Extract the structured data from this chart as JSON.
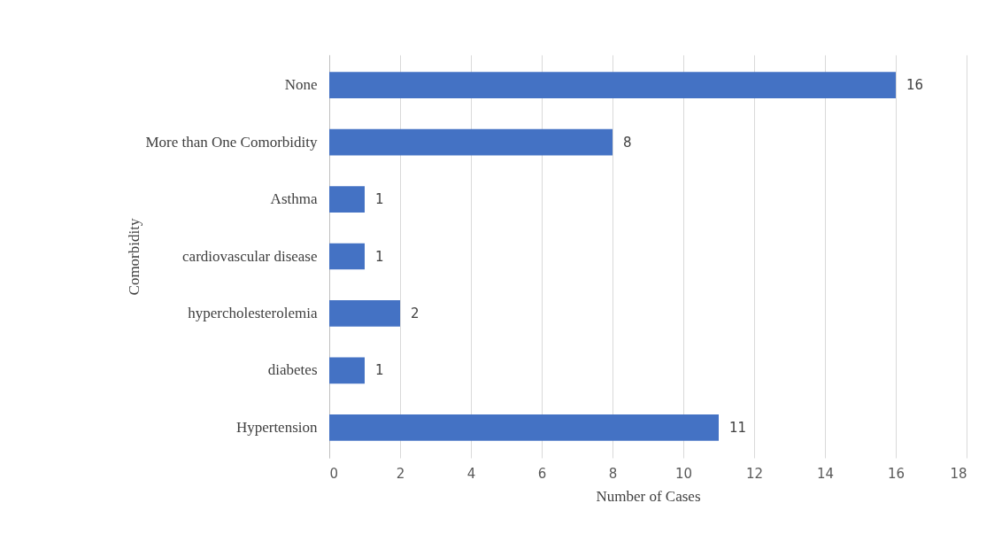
{
  "chart_data": {
    "type": "bar",
    "orientation": "horizontal",
    "xlabel": "Number of Cases",
    "ylabel": "Comorbidity",
    "categories": [
      "None",
      "More than One Comorbidity",
      "Asthma",
      "cardiovascular disease",
      "hypercholesterolemia",
      "diabetes",
      "Hypertension"
    ],
    "values": [
      16,
      8,
      1,
      1,
      2,
      1,
      11
    ],
    "color": "#4472c4",
    "xlim": [
      0,
      18
    ],
    "xticks": [
      0,
      2,
      4,
      6,
      8,
      10,
      12,
      14,
      16,
      18
    ],
    "grid": "x",
    "data_labels": true
  }
}
